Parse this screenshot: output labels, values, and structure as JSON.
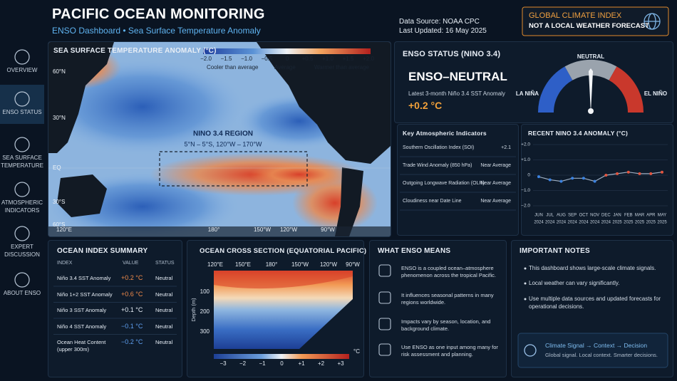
{
  "header": {
    "title": "PACIFIC OCEAN MONITORING",
    "subtitle": "ENSO Dashboard • Sea Surface Temperature Anomaly",
    "source": "Data Source: NOAA CPC",
    "updated": "Last Updated: 16 May 2025",
    "badge_title": "GLOBAL CLIMATE INDEX",
    "badge_text": "NOT A LOCAL WEATHER FORECAST"
  },
  "sidebar": [
    "OVERVIEW",
    "ENSO STATUS",
    "SEA SURFACE TEMPERATURE",
    "ATMOSPHERIC INDICATORS",
    "EXPERT DISCUSSION",
    "ABOUT ENSO"
  ],
  "map": {
    "title": "SEA SURFACE TEMPERATURE ANOMALY (°C)",
    "scale": [
      "−2.0",
      "−1.5",
      "−1.0",
      "−0.5",
      "0",
      "+0.5",
      "+1.0",
      "+1.5",
      "+2.0"
    ],
    "scale_notes": [
      "Cooler than average",
      "Average",
      "Warmer than average"
    ],
    "lat_labels": [
      "60°N",
      "30°N",
      "EQ",
      "30°S",
      "60°S"
    ],
    "lon_labels": [
      "120°E",
      "180°",
      "150°W",
      "120°W",
      "90°W"
    ],
    "region_title": "NINO 3.4 REGION",
    "region_bounds": "5°N – 5°S, 120°W – 170°W"
  },
  "status": {
    "title": "ENSO STATUS (NINO 3.4)",
    "state": "ENSO–NEUTRAL",
    "caption": "Latest 3-month Niño 3.4 SST Anomaly",
    "value": "+0.2 °C",
    "gauge_labels": [
      "LA NIÑA",
      "NEUTRAL",
      "EL NIÑO"
    ]
  },
  "indicators": {
    "title": "Key Atmospheric Indicators",
    "rows": [
      [
        "Southern Oscillation Index (SOI)",
        "+2.1"
      ],
      [
        "Trade Wind Anomaly (850 hPa)",
        "Near Average"
      ],
      [
        "Outgoing Longwave Radiation (OLR)",
        "Near Average"
      ],
      [
        "Cloudiness near Date Line",
        "Near Average"
      ]
    ]
  },
  "chart_data": {
    "type": "line",
    "title": "RECENT NINO 3.4 ANOMALY (°C)",
    "categories": [
      "JUN",
      "JUL",
      "AUG",
      "SEP",
      "OCT",
      "NOV",
      "DEC",
      "JAN",
      "FEB",
      "MAR",
      "APR",
      "MAY"
    ],
    "years": [
      "2024",
      "2024",
      "2024",
      "2024",
      "2024",
      "2024",
      "2024",
      "2025",
      "2025",
      "2025",
      "2025",
      "2025"
    ],
    "values": [
      -0.1,
      -0.3,
      -0.4,
      -0.2,
      -0.2,
      -0.4,
      0.0,
      0.1,
      0.2,
      0.1,
      0.1,
      0.2
    ],
    "color": "#9fb0c4",
    "negative_color": "#3b82e0",
    "positive_color": "#e2553f",
    "ylim": [
      -2.2,
      2.2
    ],
    "yticks": [
      {
        "value": 2,
        "label": "+2.0"
      },
      {
        "value": 1,
        "label": "+1.0"
      },
      0,
      {
        "value": -1,
        "label": "−1.0"
      },
      {
        "value": -2,
        "label": "−2.0"
      }
    ],
    "grid": true
  },
  "summary": {
    "title": "OCEAN INDEX SUMMARY",
    "columns": [
      "INDEX",
      "VALUE",
      "STATUS"
    ],
    "rows": [
      [
        "Niño 3.4 SST Anomaly",
        "+0.2 °C",
        "Neutral"
      ],
      [
        "Niño 1+2 SST Anomaly",
        "+0.6 °C",
        "Neutral"
      ],
      [
        "Niño 3 SST Anomaly",
        "+0.1 °C",
        "Neutral"
      ],
      [
        "Niño 4 SST Anomaly",
        "−0.1 °C",
        "Neutral"
      ],
      [
        "Ocean Heat Content (upper 300m)",
        "−0.2 °C",
        "Neutral"
      ]
    ]
  },
  "cross_section": {
    "title": "OCEAN CROSS SECTION (EQUATORIAL PACIFIC)",
    "lon_labels": [
      "120°E",
      "150°E",
      "180°",
      "150°W",
      "120°W",
      "90°W"
    ],
    "depth_label": "Depth (m)",
    "depth_ticks": [
      100,
      200,
      300
    ],
    "scale": [
      "−3",
      "−2",
      "−1",
      "0",
      "+1",
      "+2",
      "+3"
    ],
    "unit": "°C"
  },
  "enso_means": {
    "title": "WHAT ENSO MEANS",
    "items": [
      "ENSO is a coupled ocean–atmosphere phenomenon across the tropical Pacific.",
      "It influences seasonal patterns in many regions worldwide.",
      "Impacts vary by season, location, and background climate.",
      "Use ENSO as one input among many for risk assessment and planning."
    ]
  },
  "notes": {
    "title": "IMPORTANT NOTES",
    "items": [
      "This dashboard shows large-scale climate signals.",
      "Local weather can vary significantly.",
      "Use multiple data sources and updated forecasts for operational decisions."
    ],
    "callout_title": "Climate Signal → Context → Decision",
    "callout_text": "Global signal. Local context. Smarter decisions."
  }
}
